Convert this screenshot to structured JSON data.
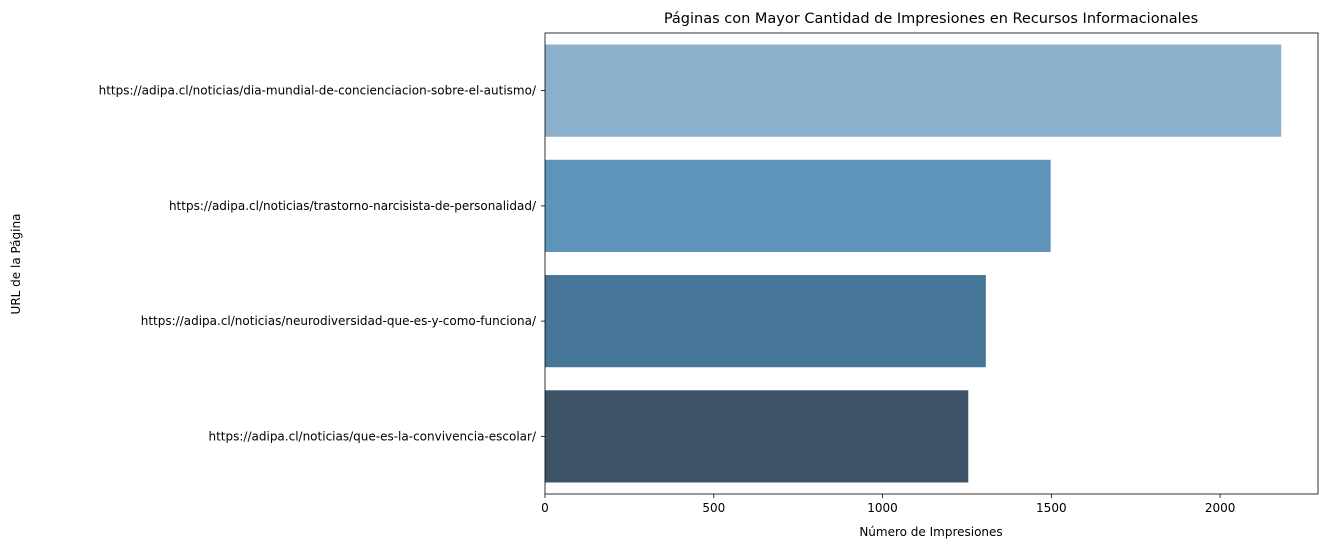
{
  "chart_data": {
    "type": "bar",
    "orientation": "horizontal",
    "title": "Páginas con Mayor Cantidad de Impresiones en Recursos Informacionales",
    "xlabel": "Número de Impresiones",
    "ylabel": "URL de la Página",
    "xlim": [
      0,
      2290
    ],
    "xticks": [
      0,
      500,
      1000,
      1500,
      2000
    ],
    "grid": false,
    "categories": [
      "https://adipa.cl/noticias/dia-mundial-de-concienciacion-sobre-el-autismo/",
      "https://adipa.cl/noticias/trastorno-narcisista-de-personalidad/",
      "https://adipa.cl/noticias/neurodiversidad-que-es-y-como-funciona/",
      "https://adipa.cl/noticias/que-es-la-convivencia-escolar/"
    ],
    "values": [
      2181,
      1498,
      1306,
      1254
    ],
    "colors": [
      "#8ab0cc",
      "#5e94ba",
      "#457697",
      "#3d5468"
    ]
  }
}
